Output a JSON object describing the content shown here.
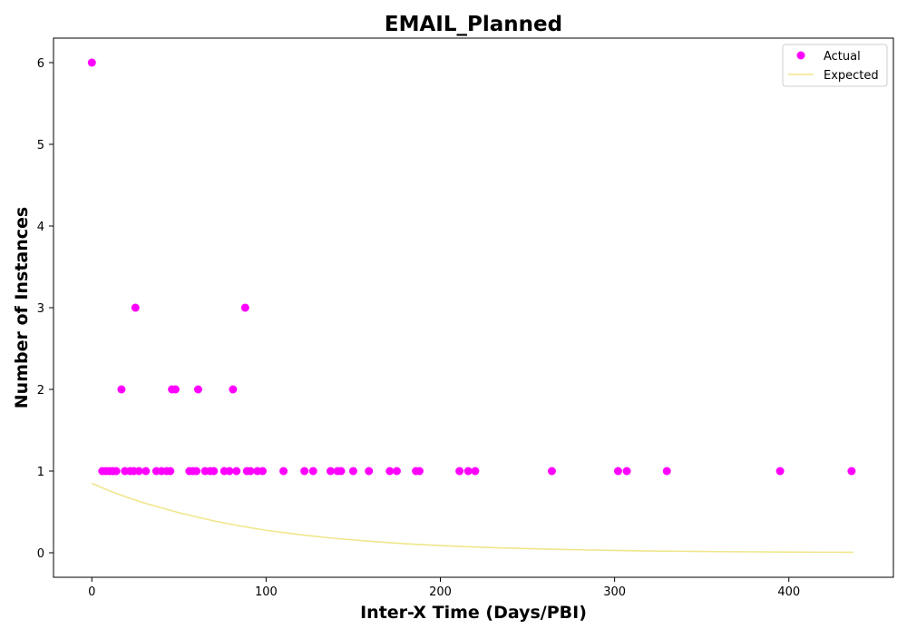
{
  "chart_data": {
    "type": "scatter",
    "title": "EMAIL_Planned",
    "xlabel": "Inter-X Time (Days/PBI)",
    "ylabel": "Number of Instances",
    "xlim": [
      -22,
      460
    ],
    "ylim": [
      -0.3,
      6.3
    ],
    "xticks": [
      0,
      100,
      200,
      300,
      400
    ],
    "yticks": [
      0,
      1,
      2,
      3,
      4,
      5,
      6
    ],
    "grid": false,
    "legend_position": "top-right",
    "series": [
      {
        "name": "Actual",
        "kind": "scatter",
        "color": "#ff00ff",
        "points": [
          [
            0,
            6
          ],
          [
            6,
            1
          ],
          [
            8,
            1
          ],
          [
            10,
            1
          ],
          [
            12,
            1
          ],
          [
            14,
            1
          ],
          [
            17,
            2
          ],
          [
            19,
            1
          ],
          [
            22,
            1
          ],
          [
            24,
            1
          ],
          [
            25,
            3
          ],
          [
            27,
            1
          ],
          [
            31,
            1
          ],
          [
            37,
            1
          ],
          [
            40,
            1
          ],
          [
            43,
            1
          ],
          [
            45,
            1
          ],
          [
            46,
            2
          ],
          [
            48,
            2
          ],
          [
            56,
            1
          ],
          [
            58,
            1
          ],
          [
            60,
            1
          ],
          [
            61,
            2
          ],
          [
            65,
            1
          ],
          [
            68,
            1
          ],
          [
            70,
            1
          ],
          [
            76,
            1
          ],
          [
            79,
            1
          ],
          [
            81,
            2
          ],
          [
            83,
            1
          ],
          [
            88,
            3
          ],
          [
            89,
            1
          ],
          [
            91,
            1
          ],
          [
            95,
            1
          ],
          [
            98,
            1
          ],
          [
            110,
            1
          ],
          [
            122,
            1
          ],
          [
            127,
            1
          ],
          [
            137,
            1
          ],
          [
            141,
            1
          ],
          [
            143,
            1
          ],
          [
            150,
            1
          ],
          [
            159,
            1
          ],
          [
            171,
            1
          ],
          [
            175,
            1
          ],
          [
            186,
            1
          ],
          [
            188,
            1
          ],
          [
            211,
            1
          ],
          [
            216,
            1
          ],
          [
            220,
            1
          ],
          [
            264,
            1
          ],
          [
            302,
            1
          ],
          [
            307,
            1
          ],
          [
            330,
            1
          ],
          [
            395,
            1
          ],
          [
            436,
            1
          ]
        ]
      },
      {
        "name": "Expected",
        "kind": "line",
        "color": "#f0e68c",
        "points": [
          [
            0,
            0.85
          ],
          [
            10,
            0.76
          ],
          [
            20,
            0.68
          ],
          [
            30,
            0.61
          ],
          [
            40,
            0.55
          ],
          [
            50,
            0.49
          ],
          [
            60,
            0.44
          ],
          [
            70,
            0.39
          ],
          [
            80,
            0.35
          ],
          [
            90,
            0.31
          ],
          [
            100,
            0.275
          ],
          [
            120,
            0.22
          ],
          [
            140,
            0.175
          ],
          [
            160,
            0.14
          ],
          [
            180,
            0.11
          ],
          [
            200,
            0.088
          ],
          [
            220,
            0.07
          ],
          [
            240,
            0.056
          ],
          [
            260,
            0.045
          ],
          [
            280,
            0.036
          ],
          [
            300,
            0.028
          ],
          [
            320,
            0.022
          ],
          [
            340,
            0.018
          ],
          [
            360,
            0.014
          ],
          [
            380,
            0.011
          ],
          [
            400,
            0.009
          ],
          [
            420,
            0.007
          ],
          [
            437,
            0.006
          ]
        ]
      }
    ]
  }
}
